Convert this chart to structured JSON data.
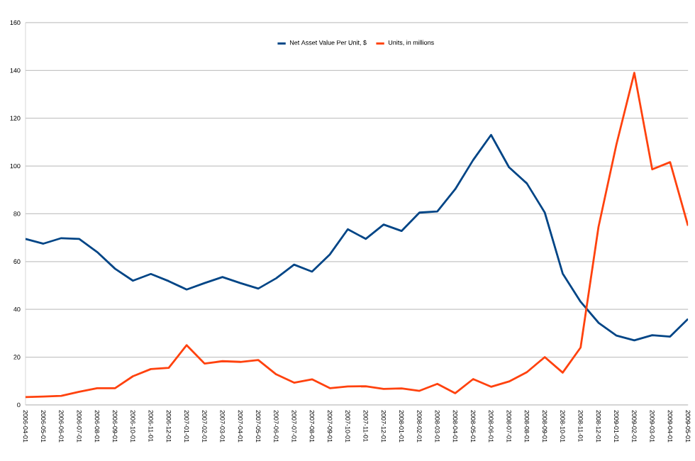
{
  "chart_data": {
    "type": "line",
    "categories": [
      "2006-04-01",
      "2006-05-01",
      "2006-06-01",
      "2006-07-01",
      "2006-08-01",
      "2006-09-01",
      "2006-10-01",
      "2006-11-01",
      "2006-12-01",
      "2007-01-01",
      "2007-02-01",
      "2007-03-01",
      "2007-04-01",
      "2007-05-01",
      "2007-06-01",
      "2007-07-01",
      "2007-08-01",
      "2007-09-01",
      "2007-10-01",
      "2007-11-01",
      "2007-12-01",
      "2008-01-01",
      "2008-02-01",
      "2008-03-01",
      "2008-04-01",
      "2008-05-01",
      "2008-06-01",
      "2008-07-01",
      "2008-08-01",
      "2008-09-01",
      "2008-10-01",
      "2008-11-01",
      "2008-12-01",
      "2009-01-01",
      "2009-02-01",
      "2009-03-01",
      "2009-04-01",
      "2009-05-01"
    ],
    "series": [
      {
        "name": "Net Asset Value Per Unit, $",
        "color": "#004586",
        "values": [
          69.5,
          67.5,
          69.8,
          69.5,
          64,
          57,
          52,
          54.8,
          51.8,
          48.3,
          51,
          53.5,
          51,
          48.7,
          53,
          58.7,
          55.8,
          63,
          73.5,
          69.5,
          75.5,
          72.8,
          80.5,
          81,
          90.3,
          102.5,
          113,
          99.5,
          92.7,
          80.5,
          55,
          43.2,
          34.4,
          29,
          27,
          29.2,
          28.6,
          36
        ]
      },
      {
        "name": "Units, in millions",
        "color": "#ff420e",
        "values": [
          3.3,
          3.5,
          3.8,
          5.5,
          7,
          7,
          12,
          15,
          15.5,
          25,
          17.3,
          18.3,
          18,
          18.8,
          12.8,
          9.3,
          10.7,
          7,
          7.7,
          7.8,
          6.7,
          6.9,
          5.9,
          8.8,
          4.9,
          10.8,
          7.6,
          9.8,
          13.7,
          20,
          13.5,
          24,
          74.5,
          109,
          139,
          98.6,
          101.6,
          75
        ]
      }
    ],
    "ylim": [
      0,
      160
    ],
    "yticks": [
      0,
      20,
      40,
      60,
      80,
      100,
      120,
      140,
      160
    ],
    "grid": "y",
    "legend": "top",
    "marker": "none",
    "line_style": "solid"
  }
}
